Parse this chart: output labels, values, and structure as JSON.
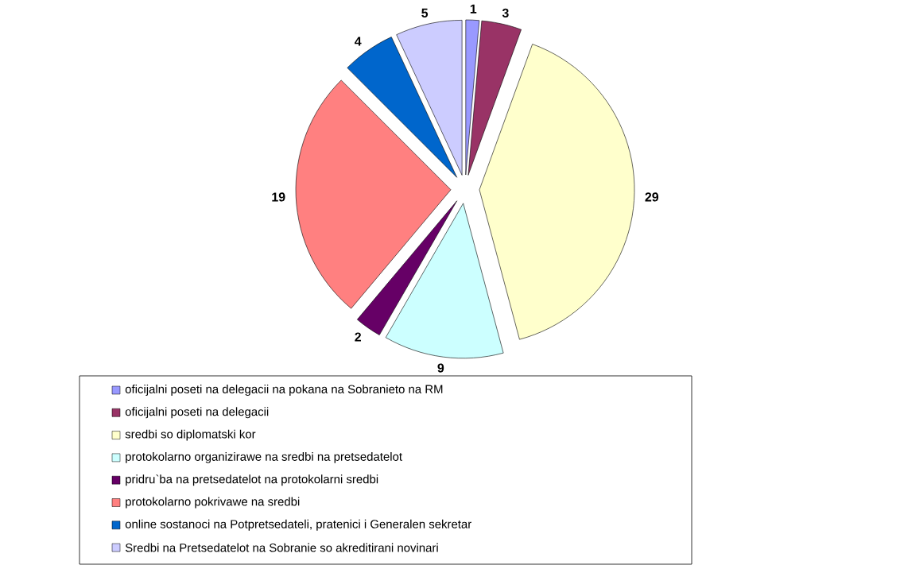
{
  "chart_data": {
    "type": "pie",
    "categories": [
      "oficijalni poseti na delegacii na pokana na Sobranieto na RM",
      "oficijalni poseti na delegacii",
      "sredbi so diplomatski kor",
      "protokolarno organizirawe na sredbi na pretsedatelot",
      "pridru`ba na pretsedatelot na protokolarni sredbi",
      "protokolarno pokrivawe na sredbi",
      "online sostanoci na Potpretsedateli, pratenici i Generalen sekretar",
      "Sredbi na Pretsedatelot na Sobranie so akreditirani novinari"
    ],
    "values": [
      1,
      3,
      29,
      9,
      2,
      19,
      4,
      5
    ],
    "colors": [
      "#9999ff",
      "#993366",
      "#ffffcc",
      "#ccffff",
      "#660066",
      "#ff8080",
      "#0066cc",
      "#ccccff"
    ],
    "data_labels": true,
    "legend": "bottom"
  }
}
